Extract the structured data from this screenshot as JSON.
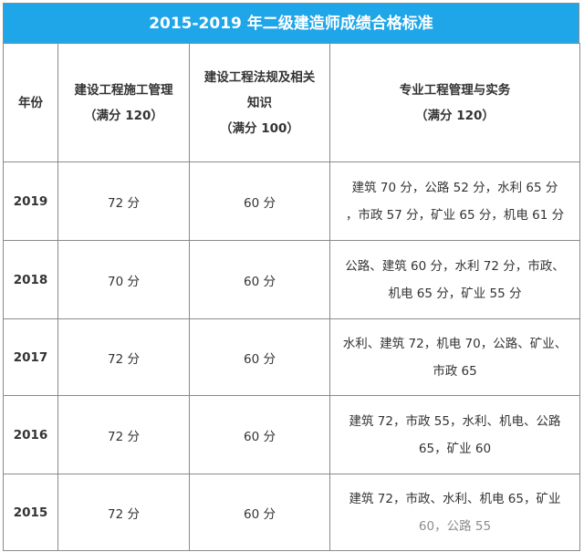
{
  "title": "2015-2019 年二级建造师成绩合格标准",
  "headers": {
    "year": "年份",
    "construction_mgmt": [
      "建设工程施工管理",
      "（满分 120）"
    ],
    "law": [
      "建设工程法规及相关",
      "知识",
      "（满分 100）"
    ],
    "practice": [
      "专业工程管理与实务",
      "（满分 120）"
    ]
  },
  "rows": [
    {
      "year": "2019",
      "mgmt": "72 分",
      "law": "60 分",
      "practice": [
        "建筑 70 分，公路 52 分，水利 65 分",
        "，市政 57 分，矿业 65 分，机电 61 分"
      ]
    },
    {
      "year": "2018",
      "mgmt": "70 分",
      "law": "60 分",
      "practice": [
        "公路、建筑 60 分，水利 72 分，市政、",
        "机电 65 分，矿业 55 分"
      ]
    },
    {
      "year": "2017",
      "mgmt": "72 分",
      "law": "60 分",
      "practice": [
        "水利、建筑 72，机电 70，公路、矿业、",
        "市政 65"
      ]
    },
    {
      "year": "2016",
      "mgmt": "72 分",
      "law": "60 分",
      "practice": [
        "建筑 72，市政 55，水利、机电、公路",
        "65，矿业 60"
      ]
    },
    {
      "year": "2015",
      "mgmt": "72 分",
      "law": "60 分",
      "practice": [
        "建筑 72，市政、水利、机电 65，矿业",
        "60，公路 55"
      ]
    }
  ]
}
